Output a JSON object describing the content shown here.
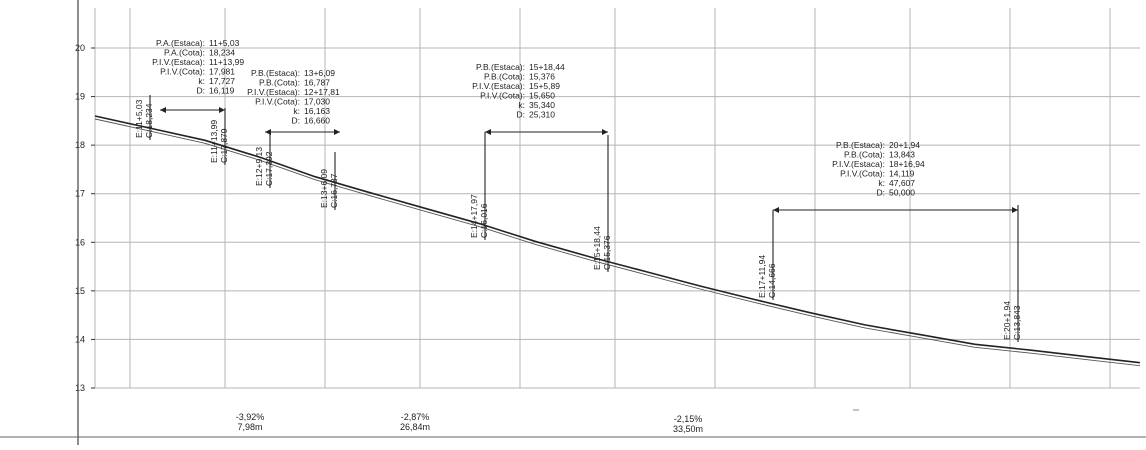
{
  "chart_data": {
    "type": "line",
    "title": "",
    "xlabel": "",
    "ylabel": "",
    "y_axis": {
      "ticks": [
        "20",
        "19",
        "18",
        "17",
        "16",
        "15",
        "14",
        "13"
      ],
      "min": 13,
      "max": 20
    },
    "vertical_grid": "on",
    "horizontal_grid": "on",
    "profile_line": [
      [
        0,
        18.6
      ],
      [
        50,
        18.35
      ],
      [
        100,
        18.1
      ],
      [
        150,
        17.75
      ],
      [
        200,
        17.35
      ],
      [
        250,
        17.02
      ],
      [
        300,
        16.7
      ],
      [
        350,
        16.38
      ],
      [
        400,
        16.02
      ],
      [
        450,
        15.7
      ],
      [
        500,
        15.4
      ],
      [
        550,
        15.1
      ],
      [
        600,
        14.82
      ],
      [
        650,
        14.55
      ],
      [
        700,
        14.3
      ],
      [
        750,
        14.1
      ],
      [
        800,
        13.9
      ],
      [
        850,
        13.78
      ],
      [
        900,
        13.65
      ],
      [
        950,
        13.52
      ]
    ],
    "stations": [
      {
        "label": "E:11+5,03",
        "value": "C:18,234"
      },
      {
        "label": "E:11+13,99",
        "value": "C:17,879"
      },
      {
        "label": "E:12+9,13",
        "value": "C:17,392"
      },
      {
        "label": "E:13+6,09",
        "value": "C:16,787"
      },
      {
        "label": "E:14+17,97",
        "value": "C:16,016"
      },
      {
        "label": "E:15+18,44",
        "value": "C:15,376"
      },
      {
        "label": "E:17+11,94",
        "value": "C:14,666"
      },
      {
        "label": "E:20+1,94",
        "value": "C:13,843"
      }
    ],
    "curves": [
      {
        "lines": [
          "P.A.(Estaca): 11+5,03",
          "P.A.(Cota): 18,234",
          "P.I.V.(Estaca): 11+13,99",
          "P.I.V.(Cota): 17,981",
          "k: 17,727",
          "D: 16,119"
        ]
      },
      {
        "lines": [
          "P.B.(Estaca): 13+6,09",
          "P.B.(Cota): 16,787",
          "P.I.V.(Estaca): 12+17,81",
          "P.I.V.(Cota): 17,030",
          "k: 16,163",
          "D: 16,660"
        ]
      },
      {
        "lines": [
          "P.B.(Estaca): 15+18,44",
          "P.B.(Cota): 15,376",
          "P.I.V.(Estaca): 15+5,89",
          "P.I.V.(Cota): 15,650",
          "k: 35,340",
          "D: 25,310"
        ]
      },
      {
        "lines": [
          "P.B.(Estaca): 20+1,94",
          "P.B.(Cota): 13,843",
          "P.I.V.(Estaca): 18+16,94",
          "P.I.V.(Cota): 14,119",
          "k: 47,607",
          "D: 50,000"
        ]
      }
    ],
    "grades": [
      {
        "slope": "-3,92%",
        "length": "7,98m"
      },
      {
        "slope": "-2,87%",
        "length": "26,84m"
      },
      {
        "slope": "-2,15%",
        "length": "33,50m"
      }
    ]
  }
}
